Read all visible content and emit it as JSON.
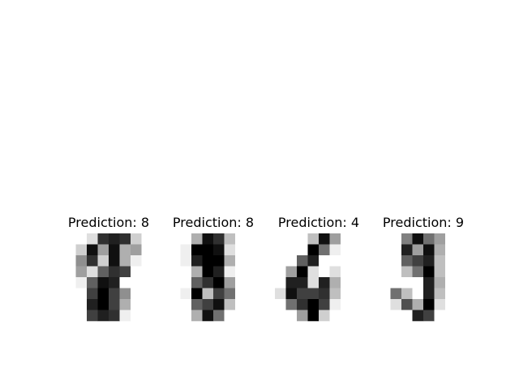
{
  "chart_data": {
    "type": "heatmap",
    "colormap": "gray_r",
    "value_range": [
      0,
      16
    ],
    "panels": [
      {
        "title": "Prediction: 8",
        "pixels": [
          [
            0,
            0,
            2,
            13,
            14,
            13,
            3,
            0
          ],
          [
            0,
            3,
            15,
            6,
            15,
            5,
            6,
            0
          ],
          [
            0,
            7,
            13,
            3,
            15,
            5,
            1,
            0
          ],
          [
            0,
            6,
            2,
            10,
            13,
            12,
            0,
            0
          ],
          [
            0,
            1,
            10,
            15,
            14,
            0,
            0,
            0
          ],
          [
            0,
            0,
            12,
            16,
            12,
            7,
            0,
            0
          ],
          [
            0,
            0,
            14,
            16,
            12,
            5,
            0,
            0
          ],
          [
            0,
            0,
            12,
            14,
            13,
            1,
            0,
            0
          ]
        ]
      },
      {
        "title": "Prediction: 8",
        "pixels": [
          [
            0,
            0,
            5,
            15,
            13,
            4,
            0,
            0
          ],
          [
            0,
            1,
            16,
            16,
            15,
            2,
            0,
            0
          ],
          [
            0,
            1,
            14,
            16,
            16,
            5,
            0,
            0
          ],
          [
            0,
            0,
            5,
            16,
            14,
            1,
            0,
            0
          ],
          [
            0,
            0,
            10,
            13,
            16,
            6,
            0,
            0
          ],
          [
            0,
            1,
            16,
            4,
            12,
            9,
            0,
            0
          ],
          [
            0,
            0,
            10,
            12,
            15,
            4,
            0,
            0
          ],
          [
            0,
            0,
            5,
            15,
            9,
            0,
            0,
            0
          ]
        ]
      },
      {
        "title": "Prediction: 4",
        "pixels": [
          [
            0,
            0,
            0,
            4,
            15,
            6,
            0,
            0
          ],
          [
            0,
            0,
            0,
            16,
            9,
            1,
            0,
            0
          ],
          [
            0,
            0,
            10,
            14,
            0,
            0,
            0,
            0
          ],
          [
            0,
            6,
            16,
            2,
            0,
            2,
            0,
            0
          ],
          [
            0,
            14,
            14,
            2,
            14,
            5,
            0,
            0
          ],
          [
            2,
            15,
            12,
            12,
            13,
            4,
            0,
            0
          ],
          [
            0,
            9,
            13,
            16,
            12,
            1,
            0,
            0
          ],
          [
            0,
            0,
            6,
            16,
            3,
            0,
            0,
            0
          ]
        ]
      },
      {
        "title": "Prediction: 9",
        "pixels": [
          [
            0,
            0,
            8,
            15,
            9,
            6,
            0,
            0
          ],
          [
            0,
            0,
            14,
            6,
            15,
            5,
            0,
            0
          ],
          [
            0,
            0,
            10,
            12,
            14,
            4,
            0,
            0
          ],
          [
            0,
            0,
            4,
            9,
            16,
            4,
            0,
            0
          ],
          [
            0,
            0,
            0,
            0,
            14,
            5,
            0,
            0
          ],
          [
            0,
            9,
            4,
            0,
            14,
            4,
            0,
            0
          ],
          [
            0,
            2,
            11,
            5,
            16,
            2,
            0,
            0
          ],
          [
            0,
            0,
            0,
            14,
            12,
            0,
            0,
            0
          ]
        ]
      }
    ]
  }
}
